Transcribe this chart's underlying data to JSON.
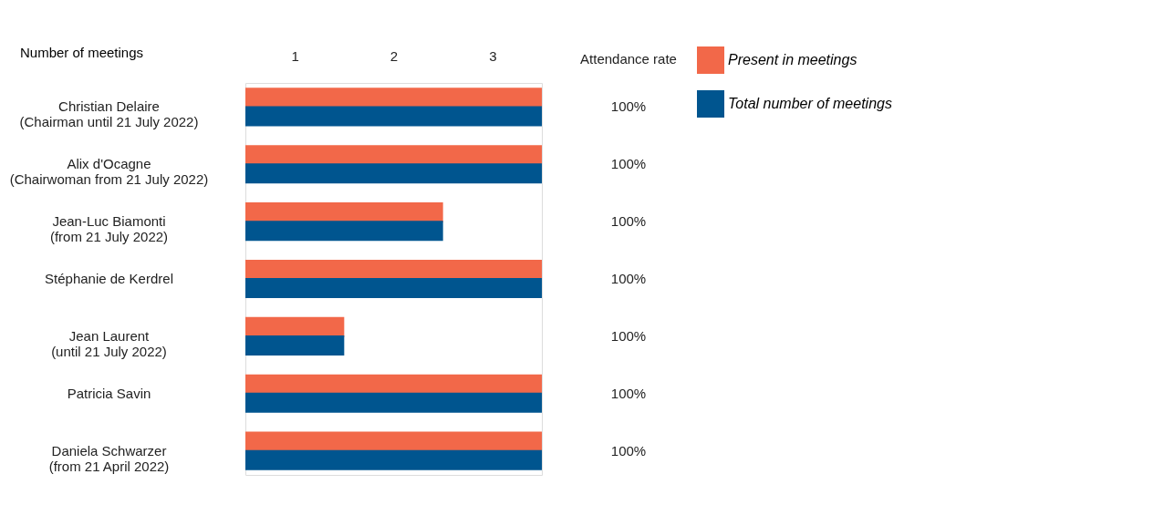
{
  "chart_data": {
    "type": "bar",
    "orientation": "horizontal",
    "ylabel": "Number of meetings",
    "categories": [
      "Christian Delaire\n(Chairman until 21 July 2022)",
      "Alix d'Ocagne\n(Chairwoman from 21 July 2022)",
      "Jean-Luc Biamonti\n(from 21 July 2022)",
      "Stéphanie de Kerdrel",
      "Jean Laurent\n(until 21 July 2022)",
      "Patricia Savin",
      "Daniela Schwarzer\n(from 21 April 2022)"
    ],
    "series": [
      {
        "name": "Present in meetings",
        "color": "#f26849",
        "values": [
          3,
          3,
          2,
          3,
          1,
          3,
          3
        ]
      },
      {
        "name": "Total number of meetings",
        "color": "#00558f",
        "values": [
          3,
          3,
          2,
          3,
          1,
          3,
          3
        ]
      }
    ],
    "xlim": [
      0,
      3
    ],
    "xticks": [
      {
        "value": 0.5,
        "label": "1"
      },
      {
        "value": 1.5,
        "label": "2"
      },
      {
        "value": 2.5,
        "label": "3"
      }
    ],
    "annotations": [
      "Attendance rate"
    ],
    "value_labels": [
      "100%",
      "100%",
      "100%",
      "100%",
      "100%",
      "100%",
      "100%"
    ],
    "legend": "top right",
    "grid": false
  }
}
